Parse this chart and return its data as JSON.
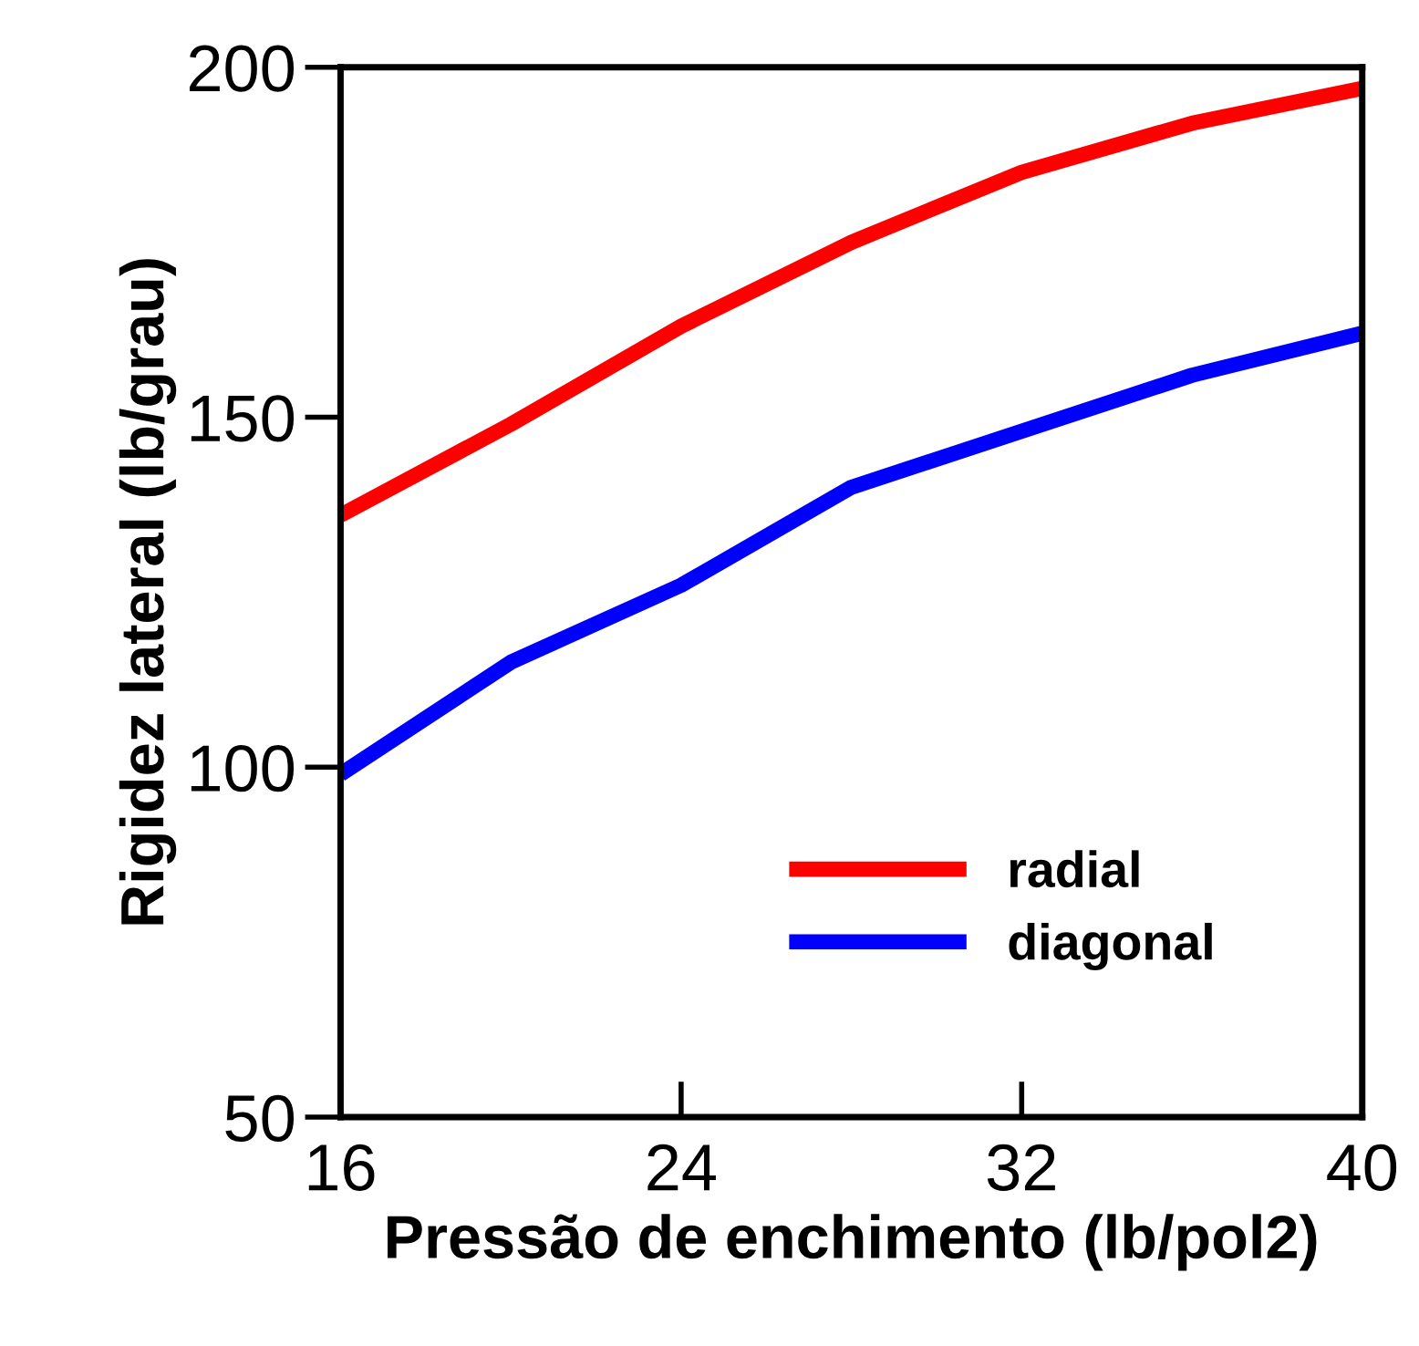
{
  "chart_data": {
    "type": "line",
    "xlabel": "Pressão de enchimento (lb/pol2)",
    "ylabel": "Rigidez lateral (lb/grau)",
    "xlim": [
      16,
      40
    ],
    "xticks": [
      16,
      24,
      32,
      40
    ],
    "ylim": [
      50,
      200
    ],
    "yticks": [
      50,
      100,
      150,
      200
    ],
    "grid": false,
    "legend": "bottom right",
    "marker": "none",
    "line_style": "solid",
    "series": [
      {
        "name": "radial",
        "color": "#ff0000",
        "x": [
          16,
          20,
          24,
          28,
          32,
          36,
          40
        ],
        "values": [
          136,
          149,
          163,
          175,
          185,
          192,
          197
        ]
      },
      {
        "name": "diagonal",
        "color": "#0000ff",
        "x": [
          16,
          20,
          24,
          28,
          32,
          36,
          40
        ],
        "values": [
          99,
          115,
          126,
          140,
          148,
          156,
          162
        ]
      }
    ]
  }
}
